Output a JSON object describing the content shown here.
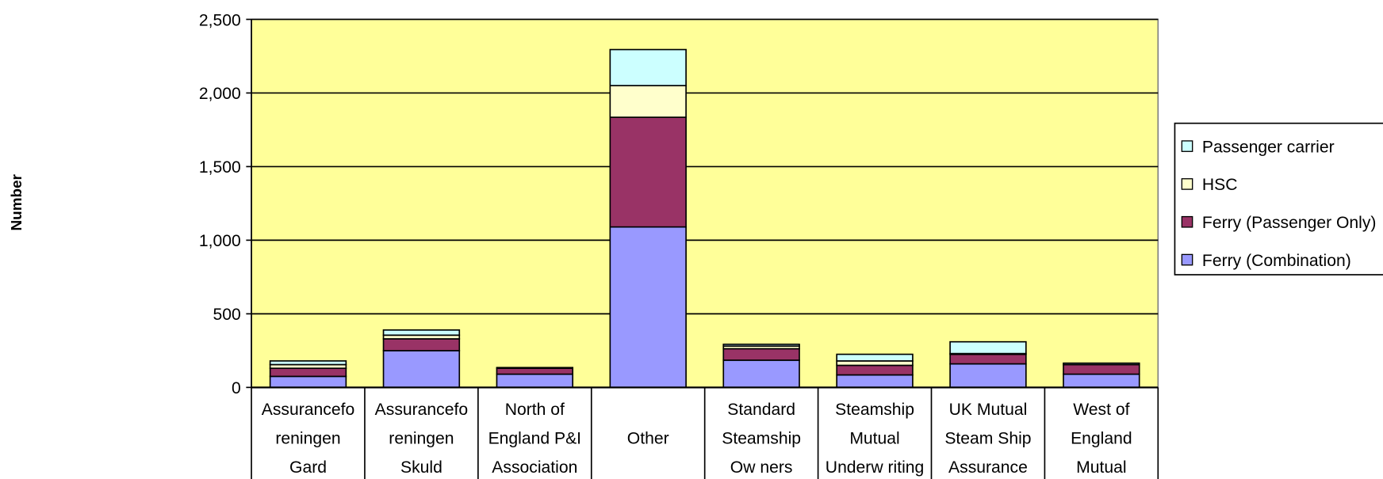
{
  "chart_data": {
    "type": "stacked_bar",
    "y_label": "Number",
    "categories": [
      [
        "Assurancefo",
        "reningen",
        "Gard"
      ],
      [
        "Assurancefo",
        "reningen",
        "Skuld"
      ],
      [
        "North of",
        "England P&I",
        "Association"
      ],
      [
        "Other"
      ],
      [
        "Standard",
        "Steamship",
        "Ow ners"
      ],
      [
        "Steamship",
        "Mutual",
        "Underw riting"
      ],
      [
        "UK Mutual",
        "Steam Ship",
        "Assurance"
      ],
      [
        "West of",
        "England",
        "Mutual"
      ]
    ],
    "series": [
      {
        "name": "Ferry (Combination)",
        "color": "#9999ff",
        "values": [
          75,
          250,
          90,
          1090,
          185,
          85,
          160,
          90
        ]
      },
      {
        "name": "Ferry (Passenger Only)",
        "color": "#993366",
        "values": [
          55,
          80,
          40,
          745,
          78,
          65,
          65,
          65
        ]
      },
      {
        "name": "HSC",
        "color": "#ffffcc",
        "values": [
          25,
          25,
          0,
          215,
          18,
          30,
          5,
          0
        ]
      },
      {
        "name": "Passenger carrier",
        "color": "#ccffff",
        "values": [
          25,
          35,
          5,
          245,
          12,
          45,
          80,
          10
        ]
      }
    ],
    "ylim": [
      0,
      2500
    ],
    "yticks": [
      0,
      {
        "value": 500,
        "label": "500"
      },
      {
        "value": 1000,
        "label": "1,000"
      },
      {
        "value": 1500,
        "label": "1,500"
      },
      {
        "value": 2000,
        "label": "2,000"
      },
      {
        "value": 2500,
        "label": "2,500"
      }
    ],
    "grid": true,
    "background": "#ffff99",
    "legend": "right"
  }
}
